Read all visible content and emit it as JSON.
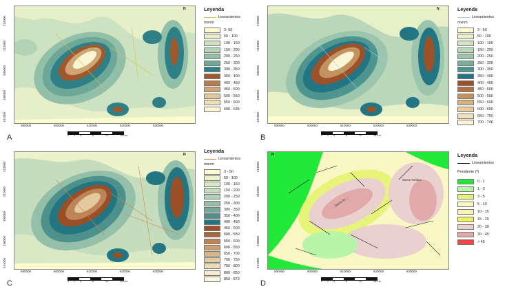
{
  "panels": [
    {
      "label": "A",
      "legend": {
        "title": "Leyenda",
        "line_label": "Lineamientos",
        "line_color": "#d9c24f",
        "unit": "msnm",
        "classes": [
          {
            "label": "3- 50",
            "color": "#fdfbd0"
          },
          {
            "label": "50 - 100",
            "color": "#e6efc8"
          },
          {
            "label": "100 - 150",
            "color": "#cde2c0"
          },
          {
            "label": "150 - 200",
            "color": "#b3d3b6"
          },
          {
            "label": "200 - 250",
            "color": "#92bfa8"
          },
          {
            "label": "250 - 300",
            "color": "#6da797"
          },
          {
            "label": "300 - 350",
            "color": "#2f7f86"
          },
          {
            "label": "350 - 400",
            "color": "#a0582d"
          },
          {
            "label": "400 - 450",
            "color": "#b87d4f"
          },
          {
            "label": "450 - 500",
            "color": "#cfa575"
          },
          {
            "label": "500 - 550",
            "color": "#e2c898"
          },
          {
            "label": "550 - 600",
            "color": "#f0e0b6"
          },
          {
            "label": "600 - 635",
            "color": "#fbf5d2"
          }
        ]
      },
      "yticks": [
        "219000",
        "212000",
        "205000",
        "198000",
        "191000"
      ],
      "xticks": [
        "590000",
        "600000",
        "610000",
        "620000",
        "630000"
      ],
      "scale": {
        "ticks": [
          "0",
          "2",
          "4",
          "8",
          "12",
          "16 Km"
        ]
      }
    },
    {
      "label": "B",
      "legend": {
        "title": "Leyenda",
        "line_label": "Lineamientos",
        "line_color": "#9fd0d8",
        "unit": "msnm",
        "classes": [
          {
            "label": "3 - 50",
            "color": "#fdfbd0"
          },
          {
            "label": "50 - 100",
            "color": "#e8f0c8"
          },
          {
            "label": "100 - 150",
            "color": "#d2e5c2"
          },
          {
            "label": "150 - 200",
            "color": "#bad8b9"
          },
          {
            "label": "200 - 250",
            "color": "#9bc6ad"
          },
          {
            "label": "250 - 300",
            "color": "#77ae9d"
          },
          {
            "label": "300 - 350",
            "color": "#4f958f"
          },
          {
            "label": "350 - 400",
            "color": "#237583"
          },
          {
            "label": "400 - 450",
            "color": "#9c5129"
          },
          {
            "label": "450 - 500",
            "color": "#b07245"
          },
          {
            "label": "500 - 550",
            "color": "#c4925f"
          },
          {
            "label": "550 - 600",
            "color": "#d7b27f"
          },
          {
            "label": "600 - 650",
            "color": "#e6cb9e"
          },
          {
            "label": "650 - 700",
            "color": "#f2e1bb"
          },
          {
            "label": "700 - 746",
            "color": "#fcf6d6"
          }
        ]
      },
      "yticks": [
        "219000",
        "212000",
        "205000",
        "198000",
        "191000"
      ],
      "xticks": [
        "590000",
        "600000",
        "610000",
        "620000",
        "630000"
      ],
      "scale": {
        "ticks": [
          "0",
          "2",
          "4",
          "8",
          "12",
          "16 Km"
        ]
      }
    },
    {
      "label": "C",
      "legend": {
        "title": "Leyenda",
        "line_label": "Lineamientos",
        "line_color": "#c98a4d",
        "unit": "msnm",
        "classes": [
          {
            "label": "3 - 50",
            "color": "#fdfbd0"
          },
          {
            "label": "50 - 100",
            "color": "#ecf2ca"
          },
          {
            "label": "100 - 150",
            "color": "#dae9c5"
          },
          {
            "label": "150 - 200",
            "color": "#c6ddbd"
          },
          {
            "label": "200 - 250",
            "color": "#afd0b4"
          },
          {
            "label": "250 - 300",
            "color": "#94bfa8"
          },
          {
            "label": "300 - 350",
            "color": "#74aa99"
          },
          {
            "label": "350 - 400",
            "color": "#4e918c"
          },
          {
            "label": "400 - 450",
            "color": "#247582"
          },
          {
            "label": "450 - 500",
            "color": "#9a4f28"
          },
          {
            "label": "500 - 550",
            "color": "#ab6a3e"
          },
          {
            "label": "550 - 600",
            "color": "#bd8456"
          },
          {
            "label": "600 - 650",
            "color": "#cc9d6d"
          },
          {
            "label": "650 - 700",
            "color": "#d9b585"
          },
          {
            "label": "700 - 750",
            "color": "#e4c99e"
          },
          {
            "label": "750 - 800",
            "color": "#eedbb6"
          },
          {
            "label": "800 - 850",
            "color": "#f6ebcd"
          },
          {
            "label": "850 - 873",
            "color": "#fcf7df"
          }
        ]
      },
      "yticks": [
        "219000",
        "212000",
        "205000",
        "198000",
        "191000"
      ],
      "xticks": [
        "590000",
        "600000",
        "610000",
        "620000",
        "630000"
      ],
      "scale": {
        "ticks": [
          "0",
          "2",
          "4",
          "8",
          "12",
          "16 Km"
        ]
      }
    },
    {
      "label": "D",
      "legend": {
        "title": "Leyenda",
        "line_label": "Lineamientos",
        "line_color": "#111111",
        "unit": "Pendiente (º)",
        "classes": [
          {
            "label": "0 - 1",
            "color": "#22e83a"
          },
          {
            "label": "1 - 3",
            "color": "#b7f5a9"
          },
          {
            "label": "3 - 5",
            "color": "#e6f57a"
          },
          {
            "label": "5 - 10",
            "color": "#fbf7c4"
          },
          {
            "label": "10 - 15",
            "color": "#fdf3b0"
          },
          {
            "label": "15 - 20",
            "color": "#f6ed5c"
          },
          {
            "label": "20 - 30",
            "color": "#ead0cf"
          },
          {
            "label": "30 - 45",
            "color": "#e1a9a9"
          },
          {
            "label": "> 45",
            "color": "#f04848"
          }
        ]
      },
      "yticks": [
        "219000",
        "212000",
        "205000",
        "198000",
        "191000"
      ],
      "xticks": [
        "590000",
        "600000",
        "610000",
        "620000",
        "630000"
      ],
      "scale": {
        "ticks": [
          "0",
          "2",
          "4",
          "8",
          "12",
          "16 Km"
        ]
      },
      "map_labels": [
        "Sierra de ...",
        "Sierra Tuñitas"
      ]
    }
  ],
  "north_symbol": "N"
}
